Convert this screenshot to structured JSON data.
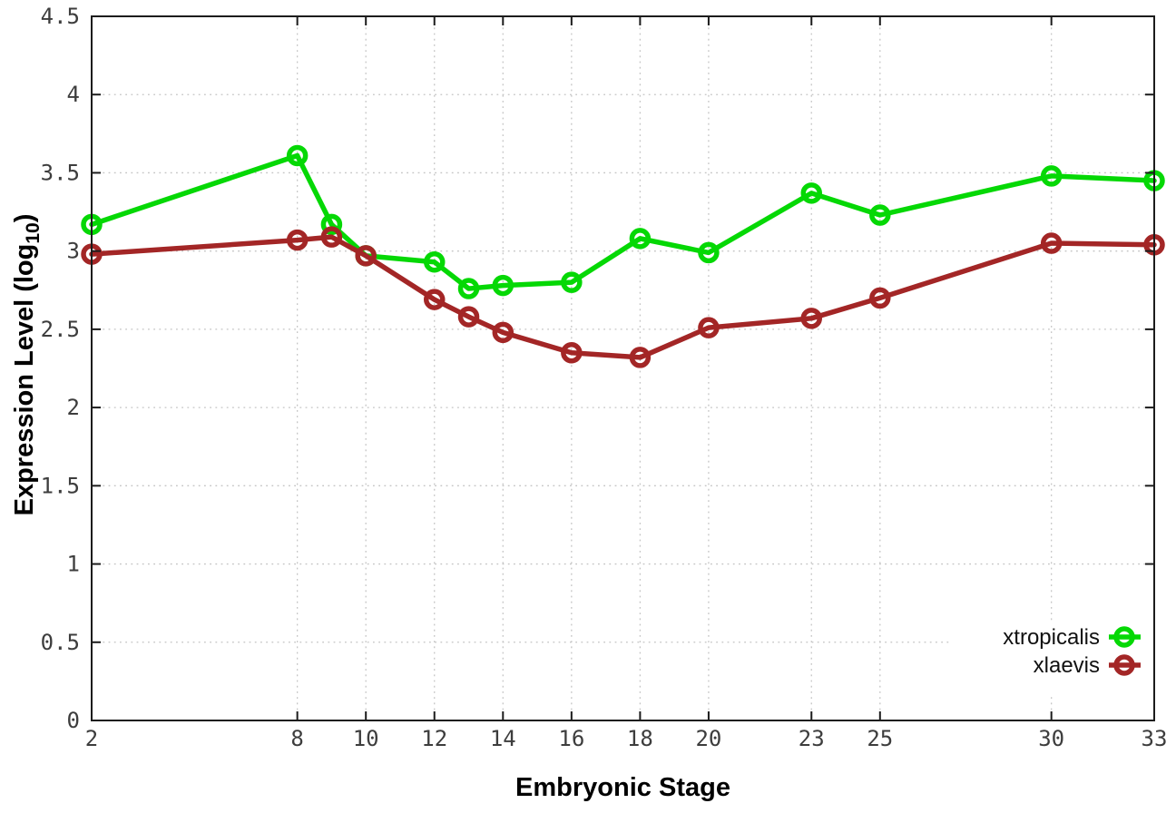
{
  "figure": {
    "background": "#ffffff",
    "axis_color": "#1c1c1c",
    "grid_color": "#c4c4c4",
    "tick_label_color": "#3d3d3d"
  },
  "chart_data": {
    "type": "line",
    "title": "",
    "xlabel": "Embryonic Stage",
    "ylabel": {
      "prefix": "Expression Level (log",
      "subscript": "10",
      "suffix": ")"
    },
    "xlim": [
      2,
      33
    ],
    "ylim": [
      0,
      4.5
    ],
    "x_ticks": [
      2,
      8,
      10,
      12,
      14,
      16,
      18,
      20,
      23,
      25,
      30,
      33
    ],
    "y_ticks": [
      "0",
      "0.5",
      "1",
      "1.5",
      "2",
      "2.5",
      "3",
      "3.5",
      "4",
      "4.5"
    ],
    "grid": "dotted",
    "legend_position": "bottom-right",
    "x": [
      2,
      8,
      9,
      10,
      12,
      13,
      14,
      16,
      18,
      20,
      23,
      25,
      30,
      33
    ],
    "series": [
      {
        "name": "xtropicalis",
        "color": "#05d805",
        "marker": "open-circle",
        "values": [
          3.17,
          3.61,
          3.17,
          2.97,
          2.93,
          2.76,
          2.78,
          2.8,
          3.08,
          2.99,
          3.37,
          3.23,
          3.48,
          3.45
        ]
      },
      {
        "name": "xlaevis",
        "color": "#a32626",
        "marker": "open-circle",
        "values": [
          2.98,
          3.07,
          3.09,
          2.97,
          2.69,
          2.58,
          2.48,
          2.35,
          2.32,
          2.51,
          2.57,
          2.7,
          3.05,
          3.04
        ]
      }
    ]
  }
}
